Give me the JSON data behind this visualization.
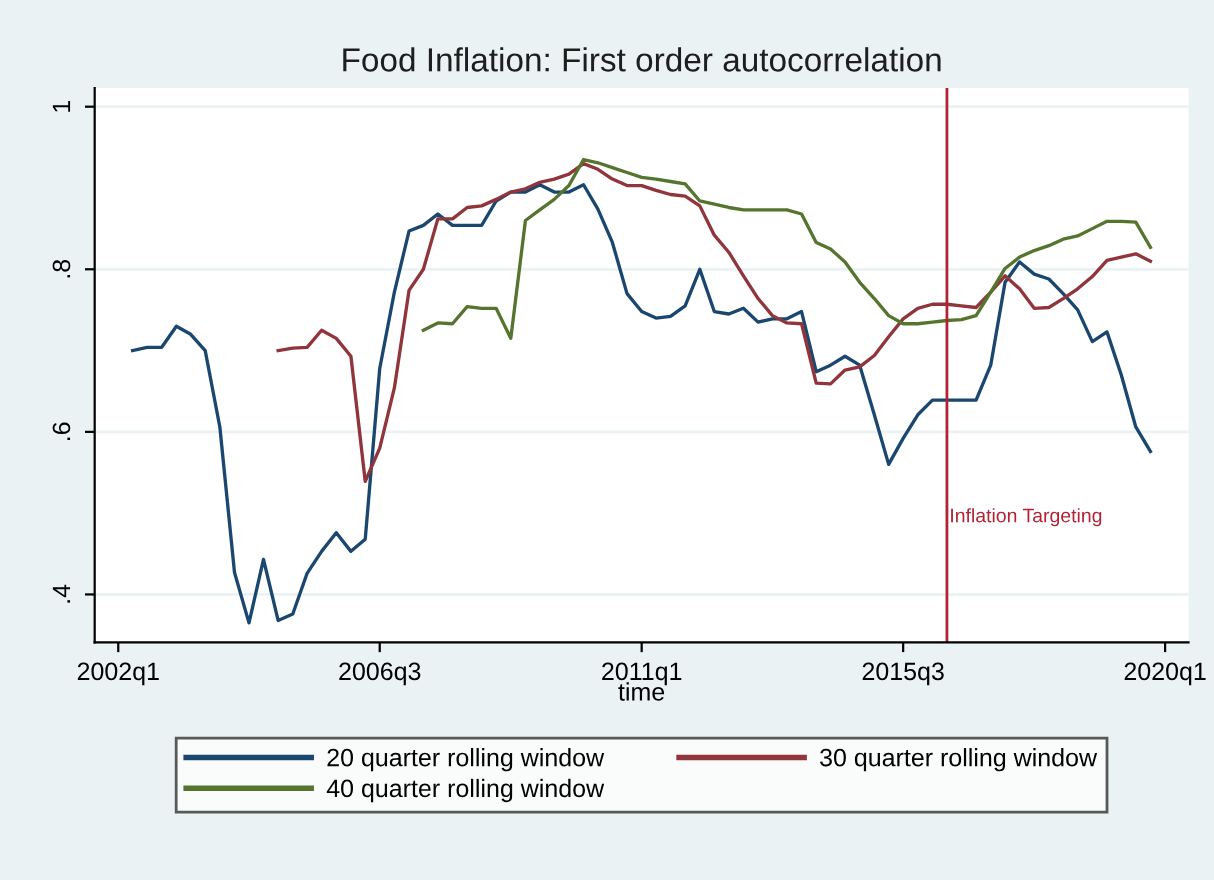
{
  "chart_data": {
    "type": "line",
    "title": "Food Inflation: First order autocorrelation",
    "xlabel": "time",
    "xlim": [
      "2001-08-20",
      "2020-06-10"
    ],
    "ylim": [
      0.341,
      1.023
    ],
    "xticks": [
      {
        "value": "2002-01",
        "label": "2002q1"
      },
      {
        "value": "2006-07",
        "label": "2006q3"
      },
      {
        "value": "2011-01",
        "label": "2011q1"
      },
      {
        "value": "2015-07",
        "label": "2015q3"
      },
      {
        "value": "2020-01",
        "label": "2020q1"
      }
    ],
    "yticks": [
      {
        "value": 0.4,
        "label": ".4"
      },
      {
        "value": 0.6,
        "label": ".6"
      },
      {
        "value": 0.8,
        "label": ".8"
      },
      {
        "value": 1,
        "label": "1"
      }
    ],
    "grid": "y",
    "legend": "bottom",
    "line_style": "solid",
    "marker": "none",
    "ref_lines": [
      {
        "axis": "x",
        "value": "2016-04",
        "label": "Inflation Targeting",
        "color": "#b22234"
      }
    ],
    "series": [
      {
        "name": "20 quarter rolling window",
        "color": "#1a476f",
        "x": [
          "2002-04",
          "2002-07",
          "2002-10",
          "2003-01",
          "2003-04",
          "2003-07",
          "2003-10",
          "2004-01",
          "2004-04",
          "2004-07",
          "2004-10",
          "2005-01",
          "2005-04",
          "2005-07",
          "2005-10",
          "2006-01",
          "2006-04",
          "2006-07",
          "2006-10",
          "2007-01",
          "2007-04",
          "2007-07",
          "2007-10",
          "2008-01",
          "2008-04",
          "2008-07",
          "2008-10",
          "2009-01",
          "2009-04",
          "2009-07",
          "2009-10",
          "2010-01",
          "2010-04",
          "2010-07",
          "2010-10",
          "2011-01",
          "2011-04",
          "2011-07",
          "2011-10",
          "2012-01",
          "2012-04",
          "2012-07",
          "2012-10",
          "2013-01",
          "2013-04",
          "2013-07",
          "2013-10",
          "2014-01",
          "2014-04",
          "2014-07",
          "2014-10",
          "2015-01",
          "2015-04",
          "2015-07",
          "2015-10",
          "2016-01",
          "2016-04",
          "2016-07",
          "2016-10",
          "2017-01",
          "2017-04",
          "2017-07",
          "2017-10",
          "2018-01",
          "2018-04",
          "2018-07",
          "2018-10",
          "2019-01",
          "2019-04",
          "2019-07",
          "2019-10"
        ],
        "values": [
          0.7,
          0.704,
          0.704,
          0.73,
          0.72,
          0.7,
          0.606,
          0.427,
          0.365,
          0.443,
          0.368,
          0.376,
          0.426,
          0.453,
          0.476,
          0.453,
          0.468,
          0.678,
          0.772,
          0.847,
          0.854,
          0.868,
          0.854,
          0.854,
          0.854,
          0.884,
          0.895,
          0.895,
          0.904,
          0.895,
          0.895,
          0.904,
          0.874,
          0.833,
          0.77,
          0.748,
          0.74,
          0.742,
          0.755,
          0.8,
          0.748,
          0.745,
          0.752,
          0.735,
          0.739,
          0.739,
          0.748,
          0.674,
          0.682,
          0.693,
          0.682,
          0.621,
          0.56,
          0.592,
          0.621,
          0.639,
          0.639,
          0.639,
          0.639,
          0.682,
          0.784,
          0.809,
          0.794,
          0.788,
          0.77,
          0.75,
          0.711,
          0.723,
          0.67,
          0.606,
          0.576
        ]
      },
      {
        "name": "30 quarter rolling window",
        "color": "#90353b",
        "x": [
          "2004-10",
          "2005-01",
          "2005-04",
          "2005-07",
          "2005-10",
          "2006-01",
          "2006-04",
          "2006-07",
          "2006-10",
          "2007-01",
          "2007-04",
          "2007-07",
          "2007-10",
          "2008-01",
          "2008-04",
          "2008-07",
          "2008-10",
          "2009-01",
          "2009-04",
          "2009-07",
          "2009-10",
          "2010-01",
          "2010-04",
          "2010-07",
          "2010-10",
          "2011-01",
          "2011-04",
          "2011-07",
          "2011-10",
          "2012-01",
          "2012-04",
          "2012-07",
          "2012-10",
          "2013-01",
          "2013-04",
          "2013-07",
          "2013-10",
          "2014-01",
          "2014-04",
          "2014-07",
          "2014-10",
          "2015-01",
          "2015-04",
          "2015-07",
          "2015-10",
          "2016-01",
          "2016-04",
          "2016-07",
          "2016-10",
          "2017-01",
          "2017-04",
          "2017-07",
          "2017-10",
          "2018-01",
          "2018-04",
          "2018-07",
          "2018-10",
          "2019-01",
          "2019-04",
          "2019-07",
          "2019-10"
        ],
        "values": [
          0.7,
          0.703,
          0.704,
          0.725,
          0.715,
          0.693,
          0.539,
          0.58,
          0.654,
          0.774,
          0.8,
          0.862,
          0.862,
          0.876,
          0.878,
          0.886,
          0.895,
          0.899,
          0.907,
          0.911,
          0.917,
          0.93,
          0.923,
          0.911,
          0.903,
          0.903,
          0.897,
          0.892,
          0.89,
          0.878,
          0.842,
          0.821,
          0.792,
          0.764,
          0.743,
          0.734,
          0.733,
          0.66,
          0.659,
          0.676,
          0.68,
          0.694,
          0.717,
          0.739,
          0.752,
          0.757,
          0.757,
          0.755,
          0.753,
          0.772,
          0.792,
          0.776,
          0.752,
          0.753,
          0.764,
          0.776,
          0.791,
          0.811,
          0.815,
          0.819,
          0.81
        ]
      },
      {
        "name": "40 quarter rolling window",
        "color": "#55752f",
        "x": [
          "2007-04",
          "2007-07",
          "2007-10",
          "2008-01",
          "2008-04",
          "2008-07",
          "2008-10",
          "2009-01",
          "2009-04",
          "2009-07",
          "2009-10",
          "2010-01",
          "2010-04",
          "2010-07",
          "2010-10",
          "2011-01",
          "2011-04",
          "2011-07",
          "2011-10",
          "2012-01",
          "2012-04",
          "2012-07",
          "2012-10",
          "2013-01",
          "2013-04",
          "2013-07",
          "2013-10",
          "2014-01",
          "2014-04",
          "2014-07",
          "2014-10",
          "2015-01",
          "2015-04",
          "2015-07",
          "2015-10",
          "2016-01",
          "2016-04",
          "2016-07",
          "2016-10",
          "2017-01",
          "2017-04",
          "2017-07",
          "2017-10",
          "2018-01",
          "2018-04",
          "2018-07",
          "2018-10",
          "2019-01",
          "2019-04",
          "2019-07",
          "2019-10"
        ],
        "values": [
          0.725,
          0.734,
          0.733,
          0.754,
          0.752,
          0.752,
          0.715,
          0.86,
          0.873,
          0.886,
          0.903,
          0.935,
          0.931,
          0.925,
          0.919,
          0.913,
          0.911,
          0.908,
          0.905,
          0.884,
          0.88,
          0.876,
          0.873,
          0.873,
          0.873,
          0.873,
          0.868,
          0.833,
          0.825,
          0.809,
          0.784,
          0.764,
          0.743,
          0.733,
          0.733,
          0.735,
          0.737,
          0.738,
          0.743,
          0.772,
          0.801,
          0.815,
          0.823,
          0.829,
          0.837,
          0.841,
          0.85,
          0.859,
          0.859,
          0.858,
          0.827
        ]
      }
    ]
  }
}
